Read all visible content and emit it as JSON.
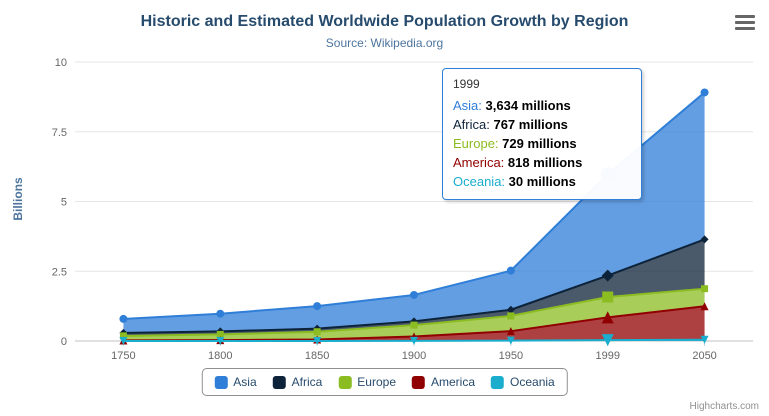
{
  "header": {
    "title": "Historic and Estimated Worldwide Population Growth by Region",
    "subtitle": "Source: Wikipedia.org"
  },
  "chart_data": {
    "type": "area",
    "stacking": "normal",
    "title": "Historic and Estimated Worldwide Population Growth by Region",
    "subtitle": "Source: Wikipedia.org",
    "categories": [
      "1750",
      "1800",
      "1850",
      "1900",
      "1950",
      "1999",
      "2050"
    ],
    "series": [
      {
        "name": "Asia",
        "color": "#2f7ed8",
        "marker": "circle",
        "values_millions": [
          502,
          635,
          809,
          947,
          1402,
          3634,
          5268
        ]
      },
      {
        "name": "Africa",
        "color": "#0d233a",
        "marker": "diamond",
        "values_millions": [
          106,
          107,
          111,
          133,
          221,
          767,
          1766
        ]
      },
      {
        "name": "Europe",
        "color": "#8bbc21",
        "marker": "square",
        "values_millions": [
          163,
          203,
          276,
          408,
          547,
          729,
          628
        ]
      },
      {
        "name": "America",
        "color": "#910000",
        "marker": "triangle",
        "values_millions": [
          18,
          31,
          54,
          156,
          339,
          818,
          1201
        ]
      },
      {
        "name": "Oceania",
        "color": "#1aadce",
        "marker": "triangle-down",
        "values_millions": [
          2,
          2,
          2,
          6,
          13,
          30,
          46
        ]
      }
    ],
    "xlabel": "",
    "ylabel": "Billions",
    "ylim": [
      0,
      10
    ],
    "yticks": [
      "0",
      "2.5",
      "5",
      "7.5",
      "10"
    ],
    "hovered_category": "1999",
    "grid": true,
    "legend_position": "bottom"
  },
  "tooltip": {
    "header": "1999",
    "rows": [
      {
        "label": "Asia",
        "value": "3,634 millions",
        "color": "#2f7ed8"
      },
      {
        "label": "Africa",
        "value": "767 millions",
        "color": "#0d233a"
      },
      {
        "label": "Europe",
        "value": "729 millions",
        "color": "#8bbc21"
      },
      {
        "label": "America",
        "value": "818 millions",
        "color": "#910000"
      },
      {
        "label": "Oceania",
        "value": "30 millions",
        "color": "#1aadce"
      }
    ]
  },
  "credits": {
    "label": "Highcharts.com"
  }
}
